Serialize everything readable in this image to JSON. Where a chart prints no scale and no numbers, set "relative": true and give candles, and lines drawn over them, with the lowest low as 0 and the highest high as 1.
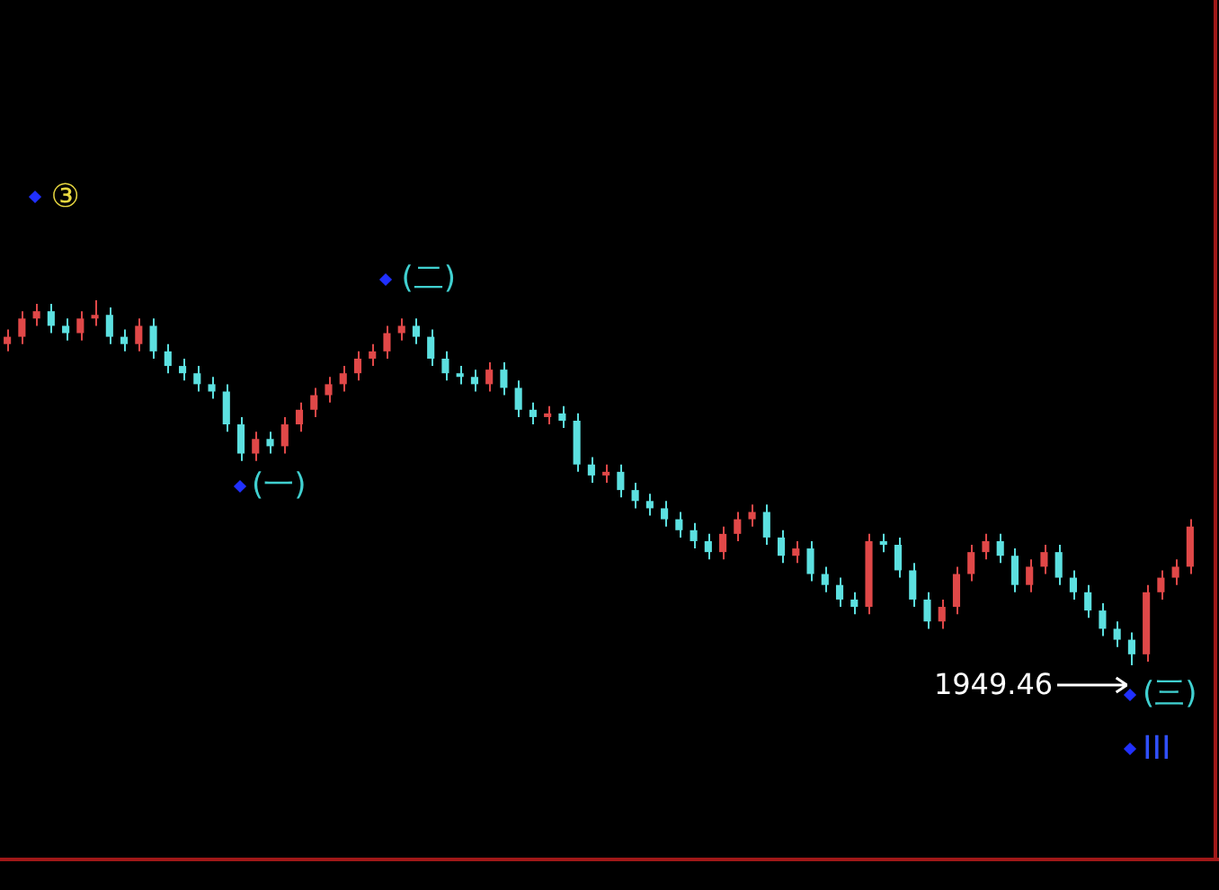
{
  "chart_data": {
    "type": "candlestick",
    "relative": true,
    "categories": [
      null,
      null,
      null,
      null,
      null,
      null,
      null,
      null,
      null,
      null,
      null,
      null,
      null,
      null,
      null,
      null,
      null,
      null,
      null,
      null,
      null,
      null,
      null,
      null,
      null,
      null,
      null,
      null,
      null,
      null,
      null,
      null,
      null,
      null,
      null,
      null,
      null,
      null,
      null,
      null,
      null,
      null,
      null,
      null,
      null,
      null,
      null,
      null,
      null,
      null,
      null,
      null,
      null,
      null,
      null,
      null,
      null,
      null,
      null,
      null,
      null,
      null,
      null,
      null,
      null,
      null,
      null,
      null,
      null,
      null,
      null,
      null,
      null,
      null,
      null,
      null,
      null,
      null,
      null,
      null,
      null,
      null
    ],
    "ohlc": [
      [
        0.88,
        0.92,
        0.86,
        0.9
      ],
      [
        0.9,
        0.97,
        0.88,
        0.95
      ],
      [
        0.95,
        0.99,
        0.93,
        0.97
      ],
      [
        0.97,
        0.99,
        0.91,
        0.93
      ],
      [
        0.93,
        0.95,
        0.89,
        0.91
      ],
      [
        0.91,
        0.97,
        0.89,
        0.95
      ],
      [
        0.95,
        1,
        0.93,
        0.96
      ],
      [
        0.96,
        0.98,
        0.88,
        0.9
      ],
      [
        0.9,
        0.92,
        0.86,
        0.88
      ],
      [
        0.88,
        0.95,
        0.86,
        0.93
      ],
      [
        0.93,
        0.95,
        0.84,
        0.86
      ],
      [
        0.86,
        0.88,
        0.8,
        0.82
      ],
      [
        0.82,
        0.84,
        0.78,
        0.8
      ],
      [
        0.8,
        0.82,
        0.75,
        0.77
      ],
      [
        0.77,
        0.79,
        0.73,
        0.75
      ],
      [
        0.75,
        0.77,
        0.64,
        0.66
      ],
      [
        0.66,
        0.68,
        0.56,
        0.58
      ],
      [
        0.58,
        0.64,
        0.56,
        0.62
      ],
      [
        0.62,
        0.64,
        0.58,
        0.6
      ],
      [
        0.6,
        0.68,
        0.58,
        0.66
      ],
      [
        0.66,
        0.72,
        0.64,
        0.7
      ],
      [
        0.7,
        0.76,
        0.68,
        0.74
      ],
      [
        0.74,
        0.79,
        0.72,
        0.77
      ],
      [
        0.77,
        0.82,
        0.75,
        0.8
      ],
      [
        0.8,
        0.86,
        0.78,
        0.84
      ],
      [
        0.84,
        0.88,
        0.82,
        0.86
      ],
      [
        0.86,
        0.93,
        0.84,
        0.91
      ],
      [
        0.91,
        0.95,
        0.89,
        0.93
      ],
      [
        0.93,
        0.95,
        0.88,
        0.9
      ],
      [
        0.9,
        0.92,
        0.82,
        0.84
      ],
      [
        0.84,
        0.86,
        0.78,
        0.8
      ],
      [
        0.8,
        0.82,
        0.77,
        0.79
      ],
      [
        0.79,
        0.81,
        0.75,
        0.77
      ],
      [
        0.77,
        0.83,
        0.75,
        0.81
      ],
      [
        0.81,
        0.83,
        0.74,
        0.76
      ],
      [
        0.76,
        0.78,
        0.68,
        0.7
      ],
      [
        0.7,
        0.72,
        0.66,
        0.68
      ],
      [
        0.68,
        0.71,
        0.66,
        0.69
      ],
      [
        0.69,
        0.71,
        0.65,
        0.67
      ],
      [
        0.67,
        0.69,
        0.53,
        0.55
      ],
      [
        0.55,
        0.57,
        0.5,
        0.52
      ],
      [
        0.52,
        0.55,
        0.5,
        0.53
      ],
      [
        0.53,
        0.55,
        0.46,
        0.48
      ],
      [
        0.48,
        0.5,
        0.43,
        0.45
      ],
      [
        0.45,
        0.47,
        0.41,
        0.43
      ],
      [
        0.43,
        0.45,
        0.38,
        0.4
      ],
      [
        0.4,
        0.42,
        0.35,
        0.37
      ],
      [
        0.37,
        0.39,
        0.32,
        0.34
      ],
      [
        0.34,
        0.36,
        0.29,
        0.31
      ],
      [
        0.31,
        0.38,
        0.29,
        0.36
      ],
      [
        0.36,
        0.42,
        0.34,
        0.4
      ],
      [
        0.4,
        0.44,
        0.38,
        0.42
      ],
      [
        0.42,
        0.44,
        0.33,
        0.35
      ],
      [
        0.35,
        0.37,
        0.28,
        0.3
      ],
      [
        0.3,
        0.34,
        0.28,
        0.32
      ],
      [
        0.32,
        0.34,
        0.23,
        0.25
      ],
      [
        0.25,
        0.27,
        0.2,
        0.22
      ],
      [
        0.22,
        0.24,
        0.16,
        0.18
      ],
      [
        0.18,
        0.2,
        0.14,
        0.16
      ],
      [
        0.16,
        0.36,
        0.14,
        0.34
      ],
      [
        0.34,
        0.36,
        0.31,
        0.33
      ],
      [
        0.33,
        0.35,
        0.24,
        0.26
      ],
      [
        0.26,
        0.28,
        0.16,
        0.18
      ],
      [
        0.18,
        0.2,
        0.1,
        0.12
      ],
      [
        0.12,
        0.18,
        0.1,
        0.16
      ],
      [
        0.16,
        0.27,
        0.14,
        0.25
      ],
      [
        0.25,
        0.33,
        0.23,
        0.31
      ],
      [
        0.31,
        0.36,
        0.29,
        0.34
      ],
      [
        0.34,
        0.36,
        0.28,
        0.3
      ],
      [
        0.3,
        0.32,
        0.2,
        0.22
      ],
      [
        0.22,
        0.29,
        0.2,
        0.27
      ],
      [
        0.27,
        0.33,
        0.25,
        0.31
      ],
      [
        0.31,
        0.33,
        0.22,
        0.24
      ],
      [
        0.24,
        0.26,
        0.18,
        0.2
      ],
      [
        0.2,
        0.22,
        0.13,
        0.15
      ],
      [
        0.15,
        0.17,
        0.08,
        0.1
      ],
      [
        0.1,
        0.12,
        0.05,
        0.07
      ],
      [
        0.07,
        0.09,
        0,
        0.03
      ],
      [
        0.03,
        0.22,
        0.01,
        0.2
      ],
      [
        0.2,
        0.26,
        0.18,
        0.24
      ],
      [
        0.24,
        0.29,
        0.22,
        0.27
      ],
      [
        0.27,
        0.4,
        0.25,
        0.38
      ]
    ],
    "colors": [
      "#e04848",
      "#e04848",
      "#e04848",
      "#5ce0e0",
      "#5ce0e0",
      "#e04848",
      "#e04848",
      "#5ce0e0",
      "#5ce0e0",
      "#e04848",
      "#5ce0e0",
      "#5ce0e0",
      "#5ce0e0",
      "#5ce0e0",
      "#5ce0e0",
      "#5ce0e0",
      "#5ce0e0",
      "#e04848",
      "#5ce0e0",
      "#e04848",
      "#e04848",
      "#e04848",
      "#e04848",
      "#e04848",
      "#e04848",
      "#e04848",
      "#e04848",
      "#e04848",
      "#5ce0e0",
      "#5ce0e0",
      "#5ce0e0",
      "#5ce0e0",
      "#5ce0e0",
      "#e04848",
      "#5ce0e0",
      "#5ce0e0",
      "#5ce0e0",
      "#e04848",
      "#5ce0e0",
      "#5ce0e0",
      "#5ce0e0",
      "#e04848",
      "#5ce0e0",
      "#5ce0e0",
      "#5ce0e0",
      "#5ce0e0",
      "#5ce0e0",
      "#5ce0e0",
      "#5ce0e0",
      "#e04848",
      "#e04848",
      "#e04848",
      "#5ce0e0",
      "#5ce0e0",
      "#e04848",
      "#5ce0e0",
      "#5ce0e0",
      "#5ce0e0",
      "#5ce0e0",
      "#e04848",
      "#5ce0e0",
      "#5ce0e0",
      "#5ce0e0",
      "#5ce0e0",
      "#e04848",
      "#e04848",
      "#e04848",
      "#e04848",
      "#5ce0e0",
      "#5ce0e0",
      "#e04848",
      "#e04848",
      "#5ce0e0",
      "#5ce0e0",
      "#5ce0e0",
      "#5ce0e0",
      "#5ce0e0",
      "#5ce0e0",
      "#e04848",
      "#e04848",
      "#e04848",
      "#e04848"
    ],
    "annotations": [
      "③",
      "(一)",
      "(二)",
      "1949.46",
      "(三)",
      "III"
    ]
  }
}
